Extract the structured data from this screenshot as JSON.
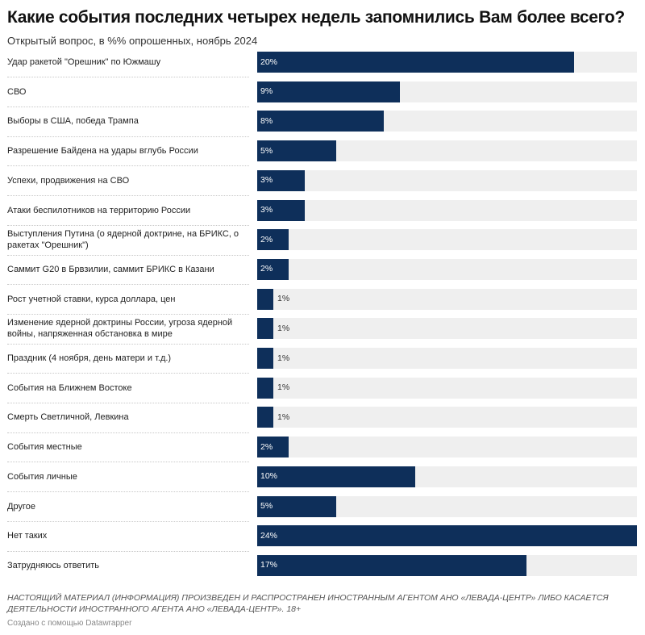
{
  "header": {
    "title": "Какие события последних четырех недель запомнились Вам более всего?",
    "subtitle": "Открытый вопрос, в %% опрошенных, ноябрь 2024"
  },
  "footer": {
    "notice": "НАСТОЯЩИЙ МАТЕРИАЛ (ИНФОРМАЦИЯ) ПРОИЗВЕДЕН И РАСПРОСТРАНЕН ИНОСТРАННЫМ АГЕНТОМ АНО «ЛЕВАДА-ЦЕНТР» ЛИБО КАСАЕТСЯ ДЕЯТЕЛЬНОСТИ ИНОСТРАННОГО АГЕНТА АНО «ЛЕВАДА-ЦЕНТР». 18+",
    "credit": "Создано с помощью Datawrapper"
  },
  "colors": {
    "bar": "#0e2f5a",
    "track": "#efefef"
  },
  "chart_data": {
    "type": "bar",
    "orientation": "horizontal",
    "title": "Какие события последних четырех недель запомнились Вам более всего?",
    "subtitle": "Открытый вопрос, в %% опрошенных, ноябрь 2024",
    "xlim": [
      0,
      24
    ],
    "value_suffix": "%",
    "categories": [
      "Удар ракетой \"Орешник\" по Южмашу",
      "СВО",
      "Выборы в США, победа Трампа",
      "Разрешение Байдена на удары вглубь России",
      "Успехи, продвижения на СВО",
      "Атаки беспилотников на территорию России",
      "Выступления Путина (о ядерной доктрине, на БРИКС, о ракетах \"Орешник\")",
      "Саммит G20 в Брвзилии, саммит БРИКС в Казани",
      "Рост учетной ставки, курса доллара, цен",
      "Изменение ядерной доктрины России, угроза ядерной войны, напряженная обстановка в мире",
      "Праздник (4 ноября, день матери и т.д.)",
      "События на Ближнем Востоке",
      "Смерть Светличной, Левкина",
      "События местные",
      "События личные",
      "Другое",
      "Нет таких",
      "Затрудняюсь ответить"
    ],
    "values": [
      20,
      9,
      8,
      5,
      3,
      3,
      2,
      2,
      1,
      1,
      1,
      1,
      1,
      2,
      10,
      5,
      24,
      17
    ],
    "value_labels": [
      "20%",
      "9%",
      "8%",
      "5%",
      "3%",
      "3%",
      "2%",
      "2%",
      "1%",
      "1%",
      "1%",
      "1%",
      "1%",
      "2%",
      "10%",
      "5%",
      "24%",
      "17%"
    ]
  }
}
